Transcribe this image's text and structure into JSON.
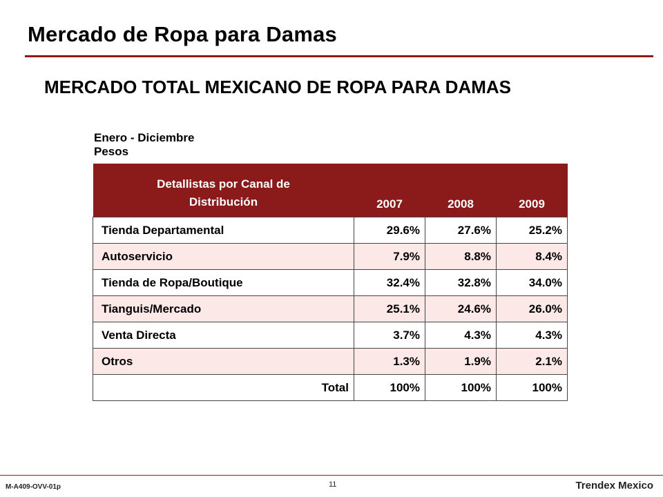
{
  "slide": {
    "title": "Mercado de Ropa para Damas",
    "subtitle": "MERCADO TOTAL MEXICANO DE ROPA PARA DAMAS",
    "period_line1": "Enero - Diciembre",
    "period_line2": "Pesos"
  },
  "table": {
    "header": {
      "label_line1": "Detallistas por Canal de",
      "label_line2": "Distribución",
      "years": [
        "2007",
        "2008",
        "2009"
      ]
    },
    "rows": [
      {
        "label": "Tienda Departamental",
        "values": [
          "29.6%",
          "27.6%",
          "25.2%"
        ]
      },
      {
        "label": "Autoservicio",
        "values": [
          "7.9%",
          "8.8%",
          "8.4%"
        ]
      },
      {
        "label": "Tienda de Ropa/Boutique",
        "values": [
          "32.4%",
          "32.8%",
          "34.0%"
        ]
      },
      {
        "label": "Tianguis/Mercado",
        "values": [
          "25.1%",
          "24.6%",
          "26.0%"
        ]
      },
      {
        "label": "Venta Directa",
        "values": [
          "3.7%",
          "4.3%",
          "4.3%"
        ]
      },
      {
        "label": "Otros",
        "values": [
          "1.3%",
          "1.9%",
          "2.1%"
        ]
      }
    ],
    "total": {
      "label": "Total",
      "values": [
        "100%",
        "100%",
        "100%"
      ]
    }
  },
  "footer": {
    "code": "M-A409-OVV-01p",
    "page": "11",
    "brand": "Trendex Mexico"
  },
  "colors": {
    "accent": "#8b1a1a",
    "row_tint": "#fde8e8"
  }
}
